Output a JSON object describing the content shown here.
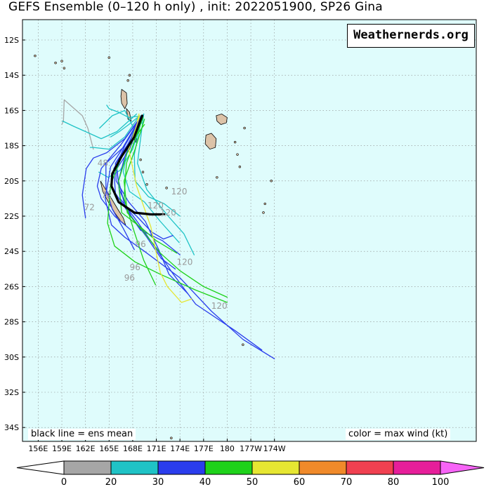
{
  "title": "GEFS Ensemble (0–120 h only) , init: 2022051900, SP26 Gina",
  "brand": "Weathernerds.org",
  "notes": {
    "left": "black line = ens mean",
    "right": "color = max wind (kt)"
  },
  "map": {
    "lat_labels": [
      "12S",
      "14S",
      "16S",
      "18S",
      "20S",
      "22S",
      "24S",
      "26S",
      "28S",
      "30S",
      "32S",
      "34S"
    ],
    "lon_labels": [
      "156E",
      "159E",
      "162E",
      "165E",
      "168E",
      "171E",
      "174E",
      "177E",
      "180",
      "177W",
      "174W"
    ],
    "ocean_color": "#dffcfc",
    "land_color": "#dcc3a8"
  },
  "hour_labels": [
    {
      "text": "48",
      "lat": -19.0,
      "lon": 164.2
    },
    {
      "text": "72",
      "lat": -20.8,
      "lon": 164.7
    },
    {
      "text": "72",
      "lat": -21.5,
      "lon": 162.5
    },
    {
      "text": "120",
      "lat": -20.6,
      "lon": 173.9
    },
    {
      "text": "120",
      "lat": -21.4,
      "lon": 170.9
    },
    {
      "text": "120",
      "lat": -21.8,
      "lon": 172.5
    },
    {
      "text": "96",
      "lat": -23.6,
      "lon": 169.0
    },
    {
      "text": "96",
      "lat": -24.9,
      "lon": 168.3
    },
    {
      "text": "96",
      "lat": -25.5,
      "lon": 167.6
    },
    {
      "text": "120",
      "lat": -24.6,
      "lon": 174.6
    },
    {
      "text": "120",
      "lat": -27.1,
      "lon": 179.0
    }
  ],
  "colorbar": {
    "ticks": [
      "0",
      "20",
      "30",
      "40",
      "50",
      "60",
      "70",
      "80",
      "100"
    ],
    "colors": [
      "#ffffff",
      "#a6a6a6",
      "#1fc3c6",
      "#2a3ded",
      "#1ed21a",
      "#e6e632",
      "#f08a2a",
      "#f04050",
      "#e61e9a",
      "#f764f7"
    ]
  },
  "tracks": [
    {
      "color": "#000000",
      "mean": true,
      "pts": [
        [
          -16.3,
          169.2
        ],
        [
          -17.5,
          168.2
        ],
        [
          -18.6,
          166.6
        ],
        [
          -19.6,
          165.4
        ],
        [
          -20.3,
          165.3
        ],
        [
          -21.2,
          166.2
        ],
        [
          -21.8,
          168.2
        ],
        [
          -21.9,
          170.3
        ],
        [
          -21.9,
          172.0
        ]
      ]
    },
    {
      "color": "#a6a6a6",
      "pts": [
        [
          -16.8,
          159.0
        ],
        [
          -16.6,
          159.2
        ],
        [
          -15.4,
          159.3
        ],
        [
          -16.3,
          161.6
        ],
        [
          -17.0,
          162.3
        ],
        [
          -18.2,
          163.0
        ]
      ]
    },
    {
      "color": "#1fc3c6",
      "pts": [
        [
          -16.2,
          168.5
        ],
        [
          -17.2,
          166.0
        ],
        [
          -17.6,
          164.0
        ],
        [
          -17.2,
          162.0
        ],
        [
          -16.9,
          160.5
        ],
        [
          -16.6,
          159.1
        ]
      ]
    },
    {
      "color": "#1fc3c6",
      "pts": [
        [
          -16.4,
          168.7
        ],
        [
          -17.5,
          167.0
        ],
        [
          -18.2,
          165.0
        ],
        [
          -18.1,
          163.0
        ],
        [
          -18.1,
          162.6
        ]
      ]
    },
    {
      "color": "#1fc3c6",
      "pts": [
        [
          -16.3,
          168.9
        ],
        [
          -16.8,
          167.5
        ],
        [
          -17.2,
          166.3
        ],
        [
          -17.5,
          165.2
        ]
      ]
    },
    {
      "color": "#1fc3c6",
      "pts": [
        [
          -16.3,
          169.0
        ],
        [
          -18.0,
          167.4
        ],
        [
          -19.5,
          166.8
        ],
        [
          -20.6,
          167.6
        ],
        [
          -21.2,
          169.5
        ],
        [
          -22.3,
          171.5
        ],
        [
          -23.5,
          173.9
        ]
      ]
    },
    {
      "color": "#1fc3c6",
      "pts": [
        [
          -16.5,
          169.1
        ],
        [
          -18.5,
          168.2
        ],
        [
          -20.0,
          168.3
        ],
        [
          -20.9,
          170.0
        ],
        [
          -21.3,
          172.0
        ],
        [
          -22.0,
          174.0
        ]
      ]
    },
    {
      "color": "#1fc3c6",
      "pts": [
        [
          -16.2,
          169.4
        ],
        [
          -19.0,
          168.6
        ],
        [
          -20.5,
          169.8
        ],
        [
          -22.0,
          172.5
        ],
        [
          -23.0,
          174.5
        ],
        [
          -24.2,
          175.8
        ]
      ]
    },
    {
      "color": "#1fc3c6",
      "pts": [
        [
          -16.3,
          169.2
        ],
        [
          -16.4,
          167.5
        ],
        [
          -16.1,
          166.2
        ],
        [
          -15.9,
          165.0
        ],
        [
          -15.7,
          164.7
        ]
      ]
    },
    {
      "color": "#1fc3c6",
      "pts": [
        [
          -16.2,
          169.4
        ],
        [
          -18.2,
          168.0
        ],
        [
          -19.4,
          166.4
        ],
        [
          -19.8,
          164.9
        ],
        [
          -19.5,
          163.7
        ]
      ]
    },
    {
      "color": "#1fc3c6",
      "pts": [
        [
          -16.7,
          169.2
        ],
        [
          -17.0,
          168.1
        ],
        [
          -16.0,
          167.0
        ],
        [
          -16.3,
          165.4
        ],
        [
          -17.0,
          163.8
        ]
      ]
    },
    {
      "color": "#2a3ded",
      "pts": [
        [
          -16.3,
          169.1
        ],
        [
          -17.6,
          167.0
        ],
        [
          -18.4,
          164.7
        ],
        [
          -18.7,
          163.0
        ],
        [
          -19.3,
          162.1
        ],
        [
          -20.8,
          161.6
        ],
        [
          -22.1,
          162.0
        ]
      ]
    },
    {
      "color": "#2a3ded",
      "pts": [
        [
          -16.4,
          169.0
        ],
        [
          -18.1,
          166.8
        ],
        [
          -19.0,
          164.6
        ],
        [
          -20.4,
          164.6
        ],
        [
          -21.6,
          165.4
        ],
        [
          -22.7,
          166.8
        ],
        [
          -23.9,
          168.2
        ]
      ]
    },
    {
      "color": "#2a3ded",
      "pts": [
        [
          -16.5,
          169.1
        ],
        [
          -18.0,
          167.3
        ],
        [
          -19.3,
          165.6
        ],
        [
          -20.7,
          165.8
        ],
        [
          -21.7,
          167.3
        ],
        [
          -22.8,
          169.0
        ],
        [
          -23.4,
          171.8
        ],
        [
          -24.2,
          174.0
        ]
      ]
    },
    {
      "color": "#2a3ded",
      "pts": [
        [
          -16.4,
          169.2
        ],
        [
          -17.9,
          167.4
        ],
        [
          -19.0,
          165.8
        ],
        [
          -20.0,
          165.9
        ],
        [
          -21.2,
          167.5
        ],
        [
          -22.3,
          169.6
        ],
        [
          -24.0,
          171.4
        ],
        [
          -25.3,
          172.6
        ],
        [
          -26.4,
          175.0
        ]
      ]
    },
    {
      "color": "#2a3ded",
      "pts": [
        [
          -16.3,
          169.1
        ],
        [
          -18.3,
          166.5
        ],
        [
          -19.2,
          165.2
        ],
        [
          -21.0,
          164.5
        ],
        [
          -22.5,
          165.3
        ],
        [
          -23.2,
          167.0
        ],
        [
          -24.0,
          169.5
        ],
        [
          -25.5,
          174.0
        ],
        [
          -27.4,
          178.0
        ],
        [
          -29.0,
          182.0
        ],
        [
          -30.1,
          186.0
        ]
      ]
    },
    {
      "color": "#2a3ded",
      "pts": [
        [
          -16.3,
          169.3
        ],
        [
          -18.2,
          167.6
        ],
        [
          -19.3,
          166.0
        ],
        [
          -21.0,
          166.4
        ],
        [
          -22.2,
          168.4
        ],
        [
          -23.6,
          170.6
        ],
        [
          -25.2,
          173.0
        ],
        [
          -27.0,
          176.0
        ],
        [
          -28.5,
          181.0
        ],
        [
          -29.6,
          184.4
        ]
      ]
    },
    {
      "color": "#2a3ded",
      "pts": [
        [
          -16.4,
          169.1
        ],
        [
          -18.0,
          167.0
        ],
        [
          -19.1,
          165.9
        ],
        [
          -20.5,
          166.3
        ],
        [
          -22.0,
          167.8
        ],
        [
          -23.2,
          169.8
        ],
        [
          -24.4,
          171.6
        ],
        [
          -25.0,
          173.4
        ]
      ]
    },
    {
      "color": "#2a3ded",
      "pts": [
        [
          -16.3,
          169.2
        ],
        [
          -18.6,
          167.0
        ],
        [
          -20.0,
          166.2
        ],
        [
          -21.4,
          167.0
        ],
        [
          -22.0,
          168.5
        ],
        [
          -22.9,
          170.4
        ],
        [
          -23.3,
          171.9
        ],
        [
          -23.1,
          173.1
        ]
      ]
    },
    {
      "color": "#2a3ded",
      "pts": [
        [
          -16.4,
          169.0
        ],
        [
          -18.0,
          166.4
        ],
        [
          -19.3,
          164.0
        ],
        [
          -20.3,
          163.5
        ],
        [
          -21.0,
          164.0
        ],
        [
          -22.0,
          165.7
        ],
        [
          -22.8,
          167.8
        ]
      ]
    },
    {
      "color": "#1ed21a",
      "pts": [
        [
          -16.5,
          169.5
        ],
        [
          -18.2,
          168.3
        ],
        [
          -20.0,
          166.9
        ],
        [
          -21.8,
          167.3
        ],
        [
          -22.9,
          169.4
        ],
        [
          -24.1,
          171.5
        ],
        [
          -25.1,
          174.0
        ],
        [
          -26.0,
          177.0
        ],
        [
          -26.6,
          180.0
        ]
      ]
    },
    {
      "color": "#1ed21a",
      "pts": [
        [
          -16.8,
          169.5
        ],
        [
          -18.4,
          166.8
        ],
        [
          -20.2,
          165.2
        ],
        [
          -22.4,
          164.8
        ],
        [
          -23.7,
          165.7
        ],
        [
          -24.6,
          168.3
        ],
        [
          -25.3,
          171.5
        ],
        [
          -26.2,
          176.0
        ],
        [
          -26.9,
          180.0
        ]
      ]
    },
    {
      "color": "#1ed21a",
      "pts": [
        [
          -16.4,
          169.3
        ],
        [
          -18.4,
          167.3
        ],
        [
          -20.0,
          166.2
        ],
        [
          -21.8,
          166.6
        ],
        [
          -22.7,
          169.2
        ],
        [
          -23.4,
          171.0
        ],
        [
          -24.1,
          173.6
        ]
      ]
    },
    {
      "color": "#1ed21a",
      "pts": [
        [
          -16.4,
          169.3
        ],
        [
          -19.0,
          167.2
        ],
        [
          -21.0,
          166.9
        ],
        [
          -22.9,
          168.2
        ],
        [
          -24.5,
          169.4
        ],
        [
          -25.9,
          170.9
        ]
      ]
    },
    {
      "color": "#e6e632",
      "pts": [
        [
          -16.3,
          168.9
        ],
        [
          -18.2,
          167.5
        ],
        [
          -20.3,
          168.5
        ],
        [
          -22.6,
          170.3
        ],
        [
          -25.2,
          171.5
        ],
        [
          -26.0,
          172.4
        ],
        [
          -26.9,
          174.2
        ],
        [
          -26.7,
          175.5
        ]
      ]
    },
    {
      "color": "#e6e632",
      "pts": [
        [
          -16.2,
          168.8
        ],
        [
          -16.6,
          168.6
        ]
      ]
    }
  ]
}
